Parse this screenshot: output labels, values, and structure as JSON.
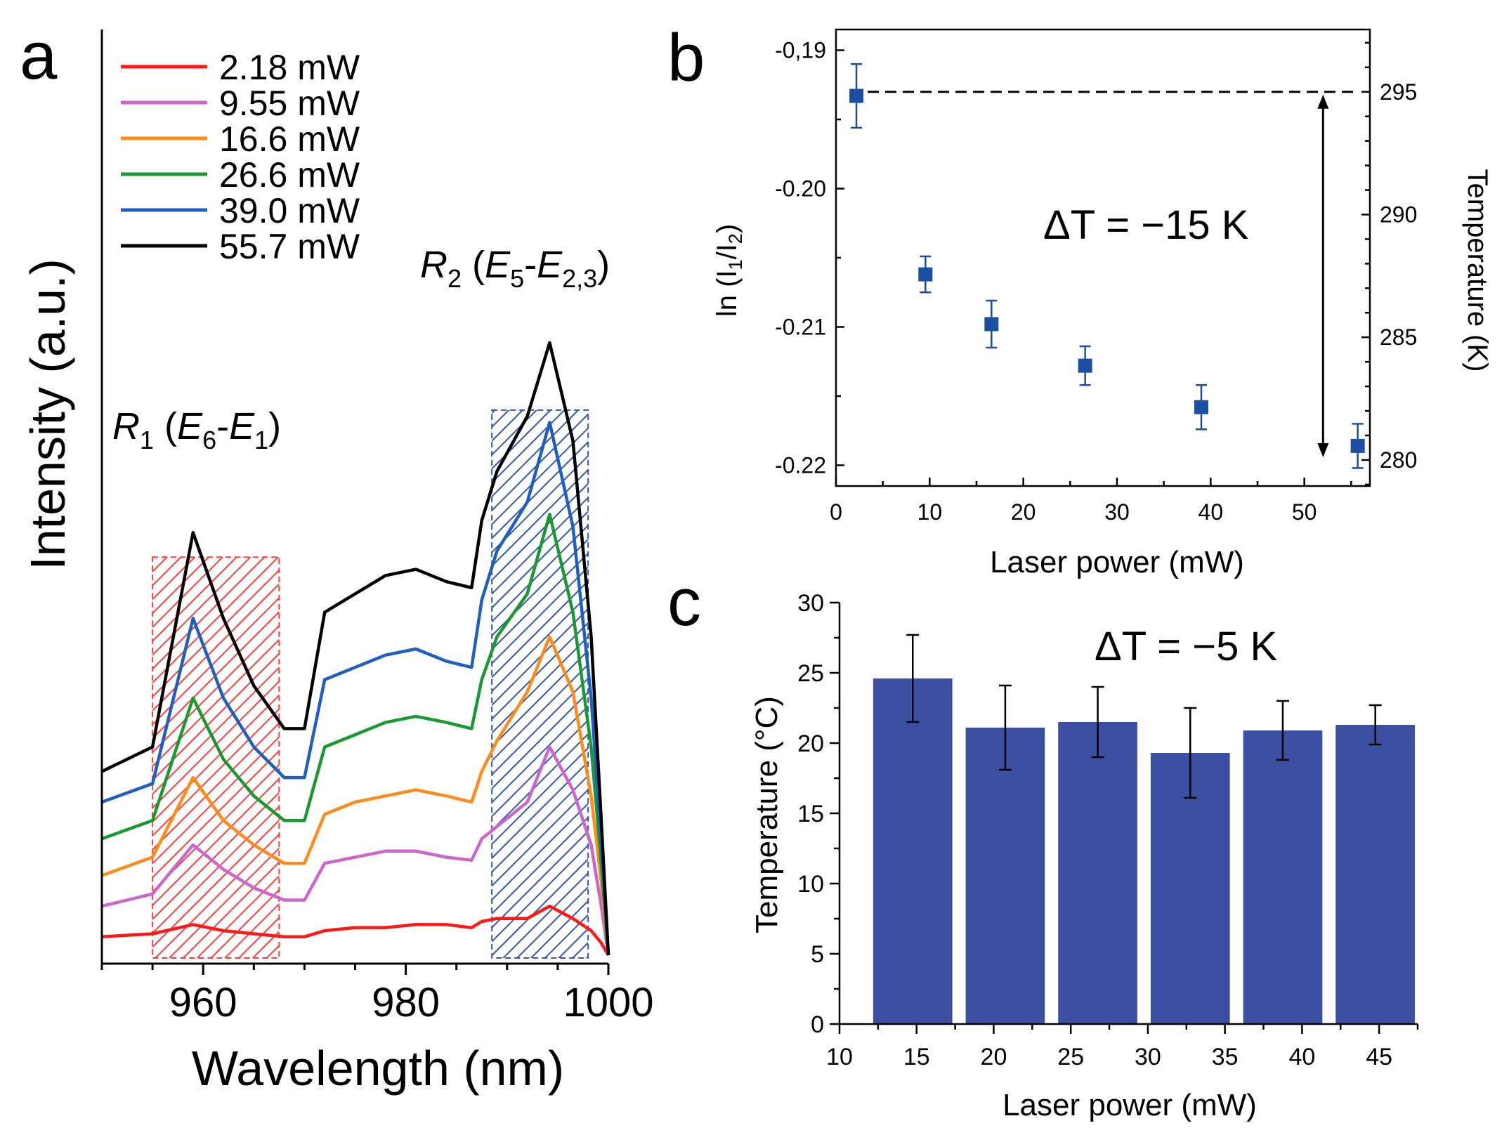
{
  "panel_labels": {
    "a": "a",
    "b": "b",
    "c": "c"
  },
  "colors": {
    "red": "#ff1a1a",
    "magenta": "#cc66cc",
    "orange": "#ff8c1a",
    "green": "#1a9933",
    "blue": "#1f5fbf",
    "black": "#000000",
    "marker": "#1c4fa3",
    "bar": "#3d4fa1",
    "r1_hatch": "#ff3333",
    "r2_hatch": "#2a4fa8"
  },
  "chart_data": [
    {
      "id": "a",
      "type": "line",
      "xlabel": "Wavelength (nm)",
      "ylabel": "Intensity (a.u.)",
      "xlim": [
        950,
        1000
      ],
      "ylim": [
        0,
        100
      ],
      "x_ticks": [
        960,
        980,
        1000
      ],
      "x_tick_labels": [
        "960",
        "980",
        "1000"
      ],
      "regions": [
        {
          "name": "R1",
          "label_main": "R",
          "label_sub": "1",
          "label_paren_open": " (",
          "label_e1": "E",
          "label_e1_sub": "6",
          "label_dash": "-",
          "label_e2": "E",
          "label_e2_sub": "1",
          "label_paren_close": ")",
          "x_range": [
            955,
            967.5
          ],
          "y_top": 65,
          "color": "red"
        },
        {
          "name": "R2",
          "label_main": "R",
          "label_sub": "2",
          "label_paren_open": " (",
          "label_e1": "E",
          "label_e1_sub": "5",
          "label_dash": "-",
          "label_e2": "E",
          "label_e2_sub": "2,3",
          "label_paren_close": ")",
          "x_range": [
            988.5,
            998
          ],
          "y_top": 89,
          "color": "blue"
        }
      ],
      "x_grid": [
        950,
        955,
        959,
        962,
        965,
        968,
        970,
        972,
        975,
        978,
        981,
        984,
        986.5,
        987.5,
        989,
        992,
        994.2,
        996.5,
        998.3,
        999.3,
        1000
      ],
      "series": [
        {
          "name": "2.18 mW",
          "color": "red",
          "values": [
            3,
            3.5,
            5,
            4,
            3.5,
            3,
            3,
            4,
            4.5,
            4.5,
            5,
            5,
            4.5,
            5.5,
            6,
            6,
            8,
            6,
            4,
            2,
            0
          ]
        },
        {
          "name": "9.55 mW",
          "color": "magenta",
          "values": [
            8,
            10,
            18,
            14,
            11,
            9,
            9,
            15,
            16,
            17,
            17,
            16,
            15.5,
            19,
            21,
            25,
            34,
            27,
            18,
            8,
            0
          ]
        },
        {
          "name": "16.6 mW",
          "color": "orange",
          "values": [
            13,
            16,
            29,
            22,
            18,
            15,
            15,
            23,
            25,
            26,
            27,
            26,
            25,
            30,
            35,
            43,
            52,
            43,
            26,
            12,
            0
          ]
        },
        {
          "name": "26.6 mW",
          "color": "green",
          "values": [
            19,
            22,
            42,
            32,
            26,
            22,
            22,
            34,
            36,
            38,
            39,
            38,
            37,
            45,
            52,
            59,
            72,
            56,
            34,
            15,
            0
          ]
        },
        {
          "name": "39.0 mW",
          "color": "blue",
          "values": [
            25,
            28,
            55,
            42,
            34,
            29,
            29,
            45,
            47,
            49,
            50,
            48,
            47,
            58,
            66,
            74,
            87,
            70,
            42,
            18,
            0
          ]
        },
        {
          "name": "55.7 mW",
          "color": "black",
          "values": [
            30,
            34,
            69,
            55,
            44,
            37,
            37,
            56,
            59,
            62,
            63,
            61,
            60,
            71,
            79,
            88,
            100,
            84,
            52,
            22,
            0
          ]
        }
      ]
    },
    {
      "id": "b",
      "type": "scatter",
      "xlabel": "Laser power (mW)",
      "ylabel_main": "ln (I",
      "ylabel_sub1": "1",
      "ylabel_mid": "/I",
      "ylabel_sub2": "2",
      "ylabel_end": ")",
      "y2label": "Temperature (K)",
      "xlim": [
        0,
        57
      ],
      "ylim": [
        -0.2215,
        -0.1885
      ],
      "y2lim": [
        278.94,
        297.54
      ],
      "x_ticks": [
        0,
        10,
        20,
        30,
        40,
        50
      ],
      "x_tick_labels": [
        "0",
        "10",
        "20",
        "30",
        "40",
        "50"
      ],
      "y_ticks": [
        -0.19,
        -0.2,
        -0.21,
        -0.22
      ],
      "y_tick_labels": [
        "-0,19",
        "-0.20",
        "-0.21",
        "-0.22"
      ],
      "y2_ticks": [
        280,
        285,
        290,
        295
      ],
      "y2_tick_labels": [
        "280",
        "285",
        "290",
        "295"
      ],
      "x": [
        2.18,
        9.55,
        16.6,
        26.6,
        39.0,
        55.7
      ],
      "y": [
        -0.1933,
        -0.2062,
        -0.2098,
        -0.2128,
        -0.2158,
        -0.2186
      ],
      "yerr": [
        0.0023,
        0.0013,
        0.0017,
        0.0014,
        0.0016,
        0.0016
      ],
      "annotation": "ΔT = −15 K",
      "reference_line_y2": 295,
      "arrow_x": 52,
      "arrow_y2": [
        295,
        280
      ]
    },
    {
      "id": "c",
      "type": "bar",
      "xlabel": "Laser power (mW)",
      "ylabel": "Temperature (°C)",
      "xlim": [
        10,
        47.5
      ],
      "ylim": [
        0,
        30
      ],
      "x_ticks": [
        10,
        15,
        20,
        25,
        30,
        35,
        40,
        45
      ],
      "x_tick_labels": [
        "10",
        "15",
        "20",
        "25",
        "30",
        "35",
        "40",
        "45"
      ],
      "y_ticks": [
        0,
        5,
        10,
        15,
        20,
        25,
        30
      ],
      "y_tick_labels": [
        "0",
        "5",
        "10",
        "15",
        "20",
        "25",
        "30"
      ],
      "bars": [
        {
          "x_from": 12,
          "x_to": 17.5,
          "value": 24.6,
          "err": 3.1
        },
        {
          "x_from": 18,
          "x_to": 23.5,
          "value": 21.1,
          "err": 3.0
        },
        {
          "x_from": 24,
          "x_to": 29.5,
          "value": 21.5,
          "err": 2.5
        },
        {
          "x_from": 30,
          "x_to": 35.5,
          "value": 19.3,
          "err": 3.2
        },
        {
          "x_from": 36,
          "x_to": 41.5,
          "value": 20.9,
          "err": 2.1
        },
        {
          "x_from": 42,
          "x_to": 47.5,
          "value": 21.3,
          "err": 1.4
        }
      ],
      "annotation": "ΔT = −5 K"
    }
  ]
}
